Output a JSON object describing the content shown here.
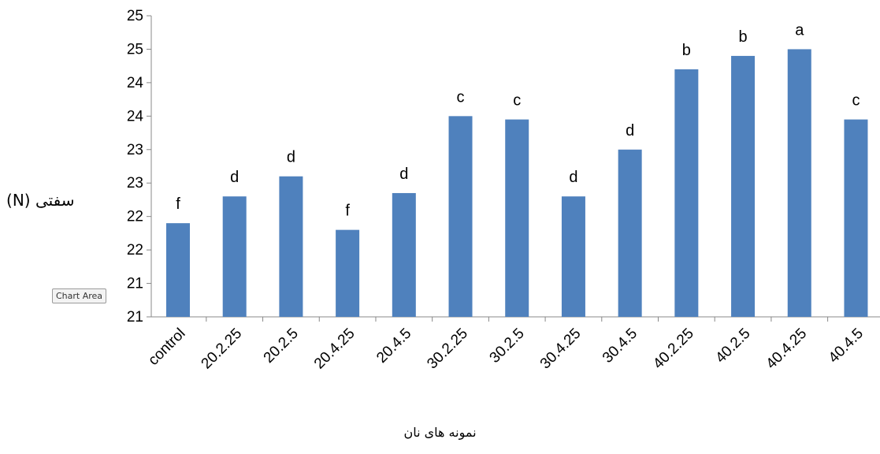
{
  "chart_data": {
    "type": "bar",
    "title": "",
    "xlabel": "نمونه های نان",
    "ylabel": "سفتی (N)",
    "yticks": [
      "21",
      "21",
      "22",
      "22",
      "23",
      "23",
      "24",
      "24",
      "25",
      "25"
    ],
    "ylim": [
      20.5,
      25
    ],
    "categories": [
      "control",
      "20.2.25",
      "20.2.5",
      "20.4.25",
      "20.4.5",
      "30.2.25",
      "30.2.5",
      "30.4.25",
      "30.4.5",
      "40.2.25",
      "40.2.5",
      "40.4.25",
      "40.4.5"
    ],
    "values": [
      21.9,
      22.3,
      22.6,
      21.8,
      22.35,
      23.5,
      23.45,
      22.3,
      23.0,
      24.2,
      24.4,
      24.5,
      23.45
    ],
    "labels": [
      "f",
      "d",
      "d",
      "f",
      "d",
      "c",
      "c",
      "d",
      "d",
      "b",
      "b",
      "a",
      "c"
    ],
    "bar_color": "#4f81bd",
    "grid": false
  },
  "tooltip": "Chart Area"
}
